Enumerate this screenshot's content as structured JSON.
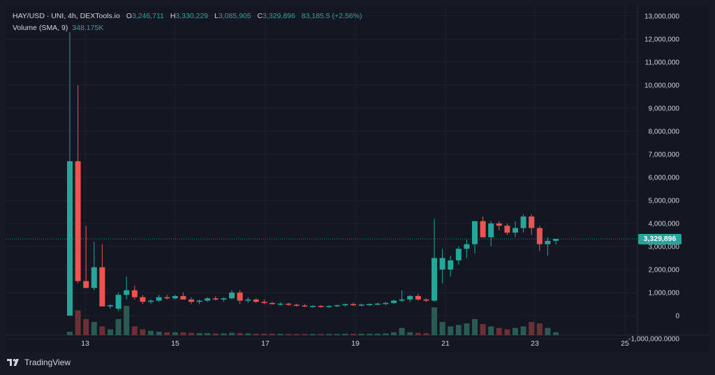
{
  "legend": {
    "symbol": "HAY/USD · UNI, 4h, DEXTools.io",
    "open_label": "O",
    "open": "3,246,711",
    "high_label": "H",
    "high": "3,330,229",
    "low_label": "L",
    "low": "3,085,905",
    "close_label": "C",
    "close": "3,329,896",
    "change": "83,185.5 (+2.56%)",
    "volume_label": "Volume (SMA, 9)",
    "volume_value": "348.175K"
  },
  "last_price_tag": "3,329,896",
  "brand": {
    "name": "TradingView",
    "logo_icon": "tradingview-logo-icon"
  },
  "colors": {
    "up": "#26a69a",
    "down": "#ef5350",
    "vol_up": "#2b5a52",
    "vol_down": "#6b2f35",
    "background": "#131722",
    "grid": "#1e2230",
    "text": "#d1d4dc"
  },
  "chart_data": {
    "type": "candlestick",
    "title": "HAY/USD · UNI, 4h, DEXTools.io",
    "x_ticks": [
      "13",
      "15",
      "17",
      "19",
      "21",
      "23",
      "25"
    ],
    "y_ticks": [
      "13,000,000",
      "12,000,000",
      "11,000,000",
      "10,000,000",
      "9,000,000",
      "8,000,000",
      "7,000,000",
      "6,000,000",
      "5,000,000",
      "4,000,000",
      "3,000,000",
      "2,000,000",
      "1,000,000",
      "0",
      "-1,000,000.0000"
    ],
    "ylim": [
      -1000000,
      13300000
    ],
    "candles": [
      {
        "o": 0,
        "h": 12300000,
        "l": 0,
        "c": 6700000
      },
      {
        "o": 6700000,
        "h": 10000000,
        "l": 1400000,
        "c": 1500000
      },
      {
        "o": 1500000,
        "h": 3900000,
        "l": 1200000,
        "c": 1200000
      },
      {
        "o": 1200000,
        "h": 3200000,
        "l": 1100000,
        "c": 2100000
      },
      {
        "o": 2100000,
        "h": 3100000,
        "l": 400000,
        "c": 400000
      },
      {
        "o": 400000,
        "h": 500000,
        "l": 300000,
        "c": 450000
      },
      {
        "o": 300000,
        "h": 1000000,
        "l": 200000,
        "c": 900000
      },
      {
        "o": 900000,
        "h": 1700000,
        "l": 700000,
        "c": 1100000
      },
      {
        "o": 1100000,
        "h": 1300000,
        "l": 700000,
        "c": 800000
      },
      {
        "o": 800000,
        "h": 900000,
        "l": 500000,
        "c": 600000
      },
      {
        "o": 600000,
        "h": 700000,
        "l": 500000,
        "c": 650000
      },
      {
        "o": 650000,
        "h": 900000,
        "l": 600000,
        "c": 800000
      },
      {
        "o": 800000,
        "h": 900000,
        "l": 700000,
        "c": 750000
      },
      {
        "o": 750000,
        "h": 900000,
        "l": 700000,
        "c": 850000
      },
      {
        "o": 850000,
        "h": 1000000,
        "l": 700000,
        "c": 700000
      },
      {
        "o": 700000,
        "h": 800000,
        "l": 500000,
        "c": 600000
      },
      {
        "o": 600000,
        "h": 700000,
        "l": 500000,
        "c": 650000
      },
      {
        "o": 650000,
        "h": 800000,
        "l": 600000,
        "c": 750000
      },
      {
        "o": 750000,
        "h": 850000,
        "l": 650000,
        "c": 700000
      },
      {
        "o": 700000,
        "h": 800000,
        "l": 600000,
        "c": 750000
      },
      {
        "o": 750000,
        "h": 1100000,
        "l": 700000,
        "c": 1000000
      },
      {
        "o": 1000000,
        "h": 1100000,
        "l": 500000,
        "c": 650000
      },
      {
        "o": 650000,
        "h": 800000,
        "l": 550000,
        "c": 700000
      },
      {
        "o": 700000,
        "h": 750000,
        "l": 550000,
        "c": 600000
      },
      {
        "o": 600000,
        "h": 700000,
        "l": 500000,
        "c": 550000
      },
      {
        "o": 550000,
        "h": 600000,
        "l": 480000,
        "c": 500000
      },
      {
        "o": 500000,
        "h": 580000,
        "l": 450000,
        "c": 520000
      },
      {
        "o": 520000,
        "h": 560000,
        "l": 430000,
        "c": 470000
      },
      {
        "o": 470000,
        "h": 520000,
        "l": 400000,
        "c": 440000
      },
      {
        "o": 440000,
        "h": 500000,
        "l": 380000,
        "c": 400000
      },
      {
        "o": 400000,
        "h": 450000,
        "l": 350000,
        "c": 420000
      },
      {
        "o": 420000,
        "h": 460000,
        "l": 350000,
        "c": 380000
      },
      {
        "o": 380000,
        "h": 450000,
        "l": 340000,
        "c": 420000
      },
      {
        "o": 420000,
        "h": 480000,
        "l": 370000,
        "c": 450000
      },
      {
        "o": 450000,
        "h": 520000,
        "l": 400000,
        "c": 500000
      },
      {
        "o": 500000,
        "h": 560000,
        "l": 420000,
        "c": 450000
      },
      {
        "o": 450000,
        "h": 520000,
        "l": 400000,
        "c": 480000
      },
      {
        "o": 480000,
        "h": 530000,
        "l": 420000,
        "c": 500000
      },
      {
        "o": 500000,
        "h": 560000,
        "l": 450000,
        "c": 520000
      },
      {
        "o": 520000,
        "h": 600000,
        "l": 460000,
        "c": 550000
      },
      {
        "o": 550000,
        "h": 700000,
        "l": 500000,
        "c": 650000
      },
      {
        "o": 650000,
        "h": 1100000,
        "l": 600000,
        "c": 700000
      },
      {
        "o": 700000,
        "h": 900000,
        "l": 600000,
        "c": 850000
      },
      {
        "o": 850000,
        "h": 950000,
        "l": 650000,
        "c": 700000
      },
      {
        "o": 700000,
        "h": 750000,
        "l": 600000,
        "c": 650000
      },
      {
        "o": 650000,
        "h": 4200000,
        "l": 600000,
        "c": 2500000
      },
      {
        "o": 2000000,
        "h": 2900000,
        "l": 1400000,
        "c": 2500000
      },
      {
        "o": 2000000,
        "h": 2600000,
        "l": 1700000,
        "c": 2400000
      },
      {
        "o": 2400000,
        "h": 3000000,
        "l": 2200000,
        "c": 2900000
      },
      {
        "o": 2900000,
        "h": 3300000,
        "l": 2500000,
        "c": 3100000
      },
      {
        "o": 3100000,
        "h": 4100000,
        "l": 2700000,
        "c": 4100000
      },
      {
        "o": 4100000,
        "h": 4300000,
        "l": 3400000,
        "c": 3400000
      },
      {
        "o": 3400000,
        "h": 4100000,
        "l": 3000000,
        "c": 4000000
      },
      {
        "o": 4000000,
        "h": 4100000,
        "l": 3700000,
        "c": 3900000
      },
      {
        "o": 3900000,
        "h": 4000000,
        "l": 3500000,
        "c": 3600000
      },
      {
        "o": 3600000,
        "h": 4100000,
        "l": 3400000,
        "c": 3800000
      },
      {
        "o": 3800000,
        "h": 4400000,
        "l": 3600000,
        "c": 4300000
      },
      {
        "o": 4300000,
        "h": 4400000,
        "l": 3500000,
        "c": 3800000
      },
      {
        "o": 3800000,
        "h": 3900000,
        "l": 2800000,
        "c": 3100000
      },
      {
        "o": 3100000,
        "h": 3400000,
        "l": 2600000,
        "c": 3246711
      },
      {
        "o": 3246711,
        "h": 3330229,
        "l": 3085905,
        "c": 3329896
      }
    ],
    "volume": [
      0.12,
      0.85,
      0.55,
      0.45,
      0.3,
      0.2,
      0.55,
      1.0,
      0.3,
      0.2,
      0.15,
      0.12,
      0.1,
      0.1,
      0.1,
      0.08,
      0.07,
      0.07,
      0.06,
      0.06,
      0.08,
      0.07,
      0.06,
      0.05,
      0.05,
      0.05,
      0.05,
      0.04,
      0.04,
      0.04,
      0.04,
      0.04,
      0.04,
      0.04,
      0.05,
      0.05,
      0.05,
      0.05,
      0.05,
      0.06,
      0.1,
      0.25,
      0.1,
      0.08,
      0.07,
      0.95,
      0.45,
      0.3,
      0.35,
      0.4,
      0.55,
      0.38,
      0.3,
      0.25,
      0.2,
      0.25,
      0.3,
      0.45,
      0.4,
      0.25,
      0.1
    ]
  }
}
